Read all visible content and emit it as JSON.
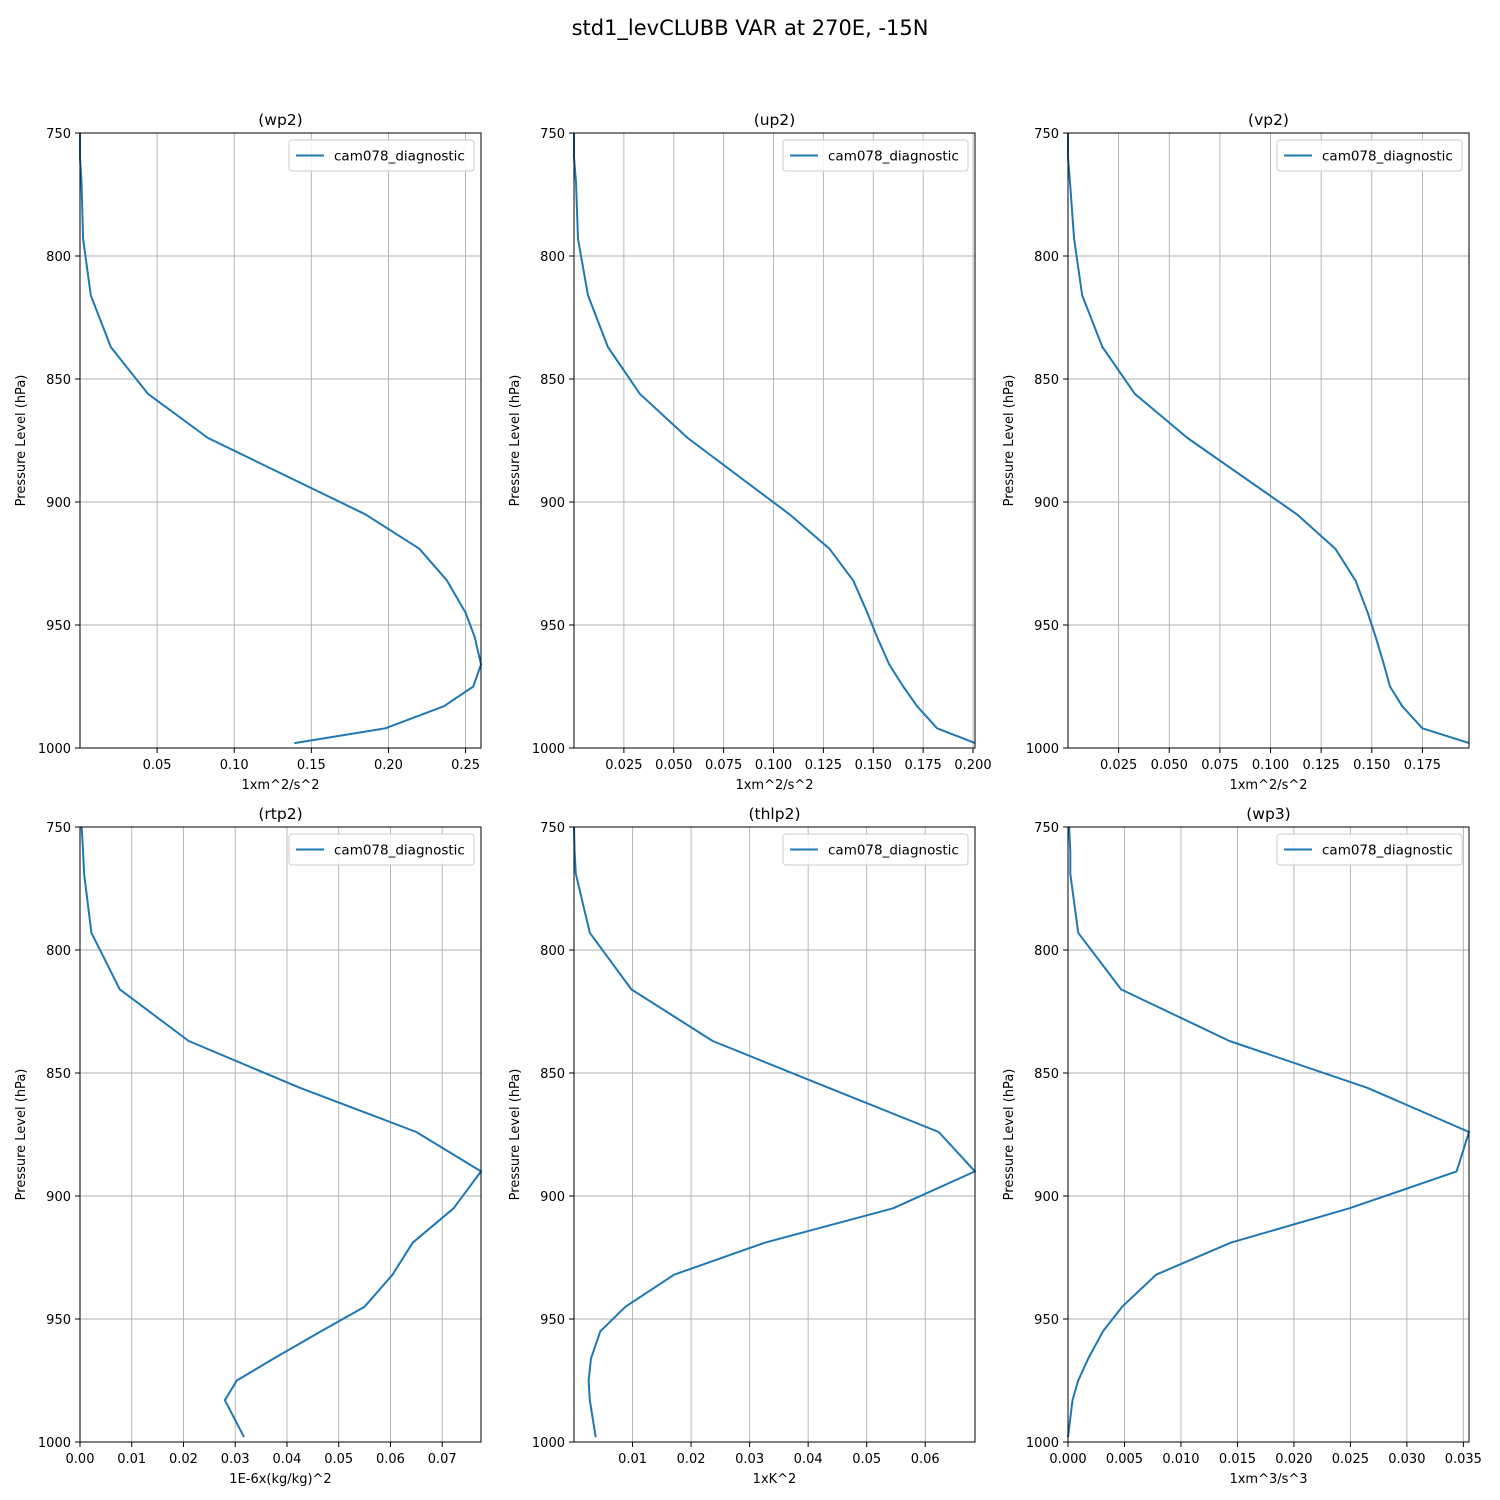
{
  "figure": {
    "title": "std1_levCLUBB VAR at 270E, -15N"
  },
  "colors": {
    "series": "#1f77b4",
    "grid": "#b0b0b0",
    "axis": "#000000"
  },
  "chart_data": [
    {
      "type": "line",
      "title": "(wp2)",
      "xlabel": "1xm^2/s^2",
      "ylabel": "Pressure Level (hPa)",
      "xlim": [
        0.0,
        0.26
      ],
      "ylim": [
        1000,
        750
      ],
      "xticks": [
        0.05,
        0.1,
        0.15,
        0.2,
        0.25
      ],
      "xticklabels": [
        "0.05",
        "0.10",
        "0.15",
        "0.20",
        "0.25"
      ],
      "yticks": [
        750,
        800,
        850,
        900,
        950,
        1000
      ],
      "yticklabels": [
        "750",
        "800",
        "850",
        "900",
        "950",
        "1000"
      ],
      "grid": true,
      "legend": "upper right",
      "series": [
        {
          "name": "cam078_diagnostic",
          "x": [
            0.0,
            0.0,
            0.001,
            0.002,
            0.007,
            0.02,
            0.044,
            0.083,
            0.185,
            0.22,
            0.238,
            0.25,
            0.256,
            0.26,
            0.255,
            0.236,
            0.198,
            0.139
          ],
          "y": [
            750,
            760,
            770,
            793,
            816,
            837,
            856,
            874,
            905,
            919,
            932,
            945,
            955,
            966,
            975,
            983,
            992,
            998
          ]
        }
      ]
    },
    {
      "type": "line",
      "title": "(up2)",
      "xlabel": "1xm^2/s^2",
      "ylabel": "Pressure Level (hPa)",
      "xlim": [
        0.0,
        0.201
      ],
      "ylim": [
        1000,
        750
      ],
      "xticks": [
        0.025,
        0.05,
        0.075,
        0.1,
        0.125,
        0.15,
        0.175,
        0.2
      ],
      "xticklabels": [
        "0.025",
        "0.050",
        "0.075",
        "0.100",
        "0.125",
        "0.150",
        "0.175",
        "0.200"
      ],
      "yticks": [
        750,
        800,
        850,
        900,
        950,
        1000
      ],
      "yticklabels": [
        "750",
        "800",
        "850",
        "900",
        "950",
        "1000"
      ],
      "grid": true,
      "legend": "upper right",
      "series": [
        {
          "name": "cam078_diagnostic",
          "x": [
            0.0,
            0.0,
            0.001,
            0.002,
            0.007,
            0.017,
            0.033,
            0.057,
            0.108,
            0.128,
            0.14,
            0.147,
            0.152,
            0.158,
            0.165,
            0.172,
            0.182,
            0.201
          ],
          "y": [
            750,
            760,
            770,
            793,
            816,
            837,
            856,
            874,
            905,
            919,
            932,
            945,
            955,
            966,
            975,
            983,
            992,
            998
          ]
        }
      ]
    },
    {
      "type": "line",
      "title": "(vp2)",
      "xlabel": "1xm^2/s^2",
      "ylabel": "Pressure Level (hPa)",
      "xlim": [
        0.0,
        0.198
      ],
      "ylim": [
        1000,
        750
      ],
      "xticks": [
        0.025,
        0.05,
        0.075,
        0.1,
        0.125,
        0.15,
        0.175
      ],
      "xticklabels": [
        "0.025",
        "0.050",
        "0.075",
        "0.100",
        "0.125",
        "0.150",
        "0.175"
      ],
      "yticks": [
        750,
        800,
        850,
        900,
        950,
        1000
      ],
      "yticklabels": [
        "750",
        "800",
        "850",
        "900",
        "950",
        "1000"
      ],
      "grid": true,
      "legend": "upper right",
      "series": [
        {
          "name": "cam078_diagnostic",
          "x": [
            0.0,
            0.0,
            0.001,
            0.003,
            0.007,
            0.017,
            0.033,
            0.059,
            0.113,
            0.132,
            0.142,
            0.148,
            0.152,
            0.156,
            0.159,
            0.165,
            0.175,
            0.198
          ],
          "y": [
            750,
            760,
            770,
            793,
            816,
            837,
            856,
            874,
            905,
            919,
            932,
            945,
            955,
            966,
            975,
            983,
            992,
            998
          ]
        }
      ]
    },
    {
      "type": "line",
      "title": "(rtp2)",
      "xlabel": "1E-6x(kg/kg)^2",
      "ylabel": "Pressure Level (hPa)",
      "xlim": [
        0.0,
        0.0775
      ],
      "ylim": [
        1000,
        750
      ],
      "xticks": [
        0.0,
        0.01,
        0.02,
        0.03,
        0.04,
        0.05,
        0.06,
        0.07
      ],
      "xticklabels": [
        "0.00",
        "0.01",
        "0.02",
        "0.03",
        "0.04",
        "0.05",
        "0.06",
        "0.07"
      ],
      "yticks": [
        750,
        800,
        850,
        900,
        950,
        1000
      ],
      "yticklabels": [
        "750",
        "800",
        "850",
        "900",
        "950",
        "1000"
      ],
      "grid": true,
      "legend": "upper right",
      "series": [
        {
          "name": "cam078_diagnostic",
          "x": [
            0.0003,
            0.0006,
            0.0008,
            0.0022,
            0.0077,
            0.021,
            0.0425,
            0.065,
            0.0775,
            0.0722,
            0.0643,
            0.0604,
            0.055,
            0.0466,
            0.0375,
            0.0303,
            0.028,
            0.0317
          ],
          "y": [
            750,
            760,
            769,
            793,
            816,
            837,
            856,
            874,
            890,
            905,
            919,
            932,
            945,
            955,
            966,
            975,
            983,
            998
          ]
        }
      ]
    },
    {
      "type": "line",
      "title": "(thlp2)",
      "xlabel": "1xK^2",
      "ylabel": "Pressure Level (hPa)",
      "xlim": [
        0.0,
        0.0685
      ],
      "ylim": [
        1000,
        750
      ],
      "xticks": [
        0.01,
        0.02,
        0.03,
        0.04,
        0.05,
        0.06
      ],
      "xticklabels": [
        "0.01",
        "0.02",
        "0.03",
        "0.04",
        "0.05",
        "0.06"
      ],
      "yticks": [
        750,
        800,
        850,
        900,
        950,
        1000
      ],
      "yticklabels": [
        "750",
        "800",
        "850",
        "900",
        "950",
        "1000"
      ],
      "grid": true,
      "legend": "upper right",
      "series": [
        {
          "name": "cam078_diagnostic",
          "x": [
            0.0,
            0.0001,
            0.0003,
            0.0027,
            0.0098,
            0.0237,
            0.0435,
            0.0623,
            0.0685,
            0.0545,
            0.0326,
            0.0171,
            0.0088,
            0.0045,
            0.0029,
            0.0025,
            0.0027,
            0.0037
          ],
          "y": [
            750,
            760,
            769,
            793,
            816,
            837,
            856,
            874,
            890,
            905,
            919,
            932,
            945,
            955,
            966,
            975,
            983,
            998
          ]
        }
      ]
    },
    {
      "type": "line",
      "title": "(wp3)",
      "xlabel": "1xm^3/s^3",
      "ylabel": "Pressure Level (hPa)",
      "xlim": [
        0.0,
        0.0355
      ],
      "ylim": [
        1000,
        750
      ],
      "xticks": [
        0.0,
        0.005,
        0.01,
        0.015,
        0.02,
        0.025,
        0.03,
        0.035
      ],
      "xticklabels": [
        "0.000",
        "0.005",
        "0.010",
        "0.015",
        "0.020",
        "0.025",
        "0.030",
        "0.035"
      ],
      "yticks": [
        750,
        800,
        850,
        900,
        950,
        1000
      ],
      "yticklabels": [
        "750",
        "800",
        "850",
        "900",
        "950",
        "1000"
      ],
      "grid": true,
      "legend": "upper right",
      "series": [
        {
          "name": "cam078_diagnostic",
          "x": [
            0.0001,
            0.0002,
            0.0002,
            0.0009,
            0.0047,
            0.0143,
            0.0265,
            0.0355,
            0.0344,
            0.0249,
            0.0144,
            0.0078,
            0.0048,
            0.0031,
            0.0018,
            0.0009,
            0.0004,
            0.0
          ],
          "y": [
            750,
            760,
            769,
            793,
            816,
            837,
            856,
            874,
            890,
            905,
            919,
            932,
            945,
            955,
            966,
            975,
            983,
            998
          ]
        }
      ]
    }
  ]
}
